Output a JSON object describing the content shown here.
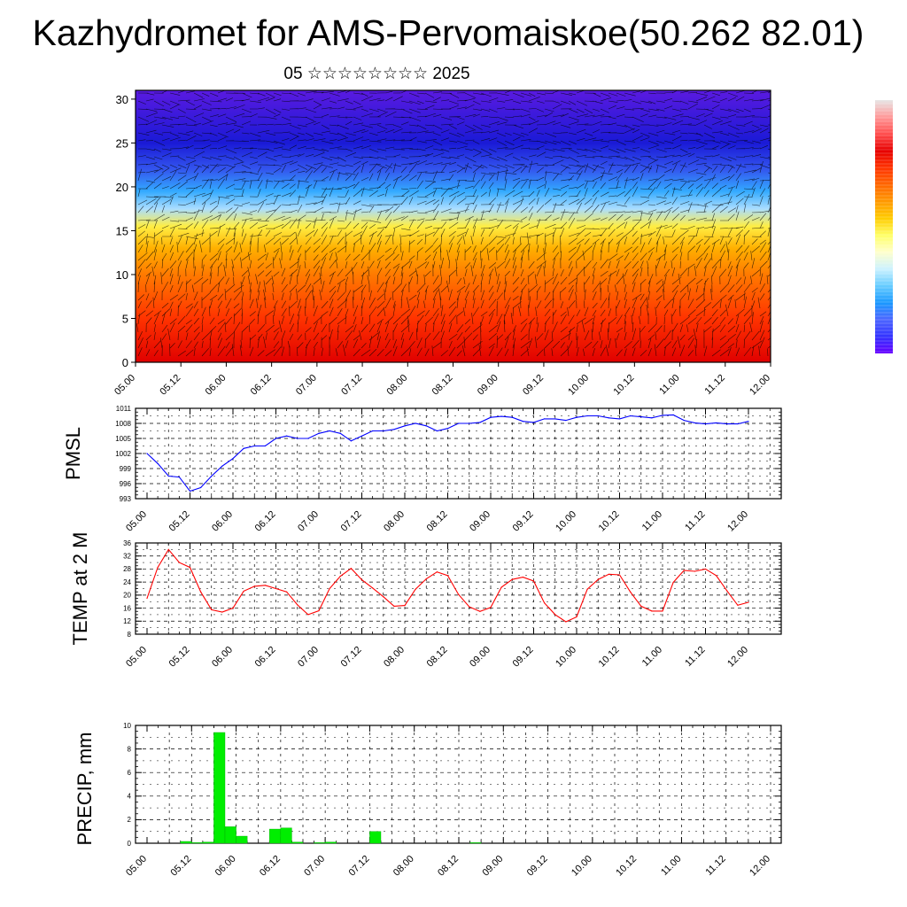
{
  "page": {
    "title": "Kazhydromet for AMS-Pervomaiskoe(50.262 82.01)",
    "subtitle": "05 ☆☆☆☆☆☆☆☆ 2025"
  },
  "time_axis": {
    "labels": [
      "05.00",
      "05.12",
      "06.00",
      "06.12",
      "07.00",
      "07.12",
      "08.00",
      "08.12",
      "09.00",
      "09.12",
      "10.00",
      "10.12",
      "11.00",
      "11.12",
      "12.00"
    ]
  },
  "colorbar": {
    "colors": [
      "#e6e6e6",
      "#ff9999",
      "#ff4d4d",
      "#e60000",
      "#ff3300",
      "#ff6600",
      "#ff9900",
      "#ffcc00",
      "#ffff66",
      "#ffffcc",
      "#ccf2ff",
      "#66ccff",
      "#1a99ff",
      "#4d66ff",
      "#3333ff",
      "#6600ff"
    ]
  },
  "chart_data": [
    {
      "type": "heatmap",
      "name": "cross-section",
      "x_range_hours": [
        0,
        168
      ],
      "y_range": [
        0,
        31
      ],
      "yticks": [
        0,
        5,
        10,
        15,
        20,
        25,
        30
      ],
      "color_levels": {
        "description_bands_by_height": [
          {
            "y": 0,
            "color": "#e00000"
          },
          {
            "y": 5,
            "color": "#ff3300"
          },
          {
            "y": 10,
            "color": "#ff7a00"
          },
          {
            "y": 13,
            "color": "#ffb000"
          },
          {
            "y": 15.5,
            "color": "#ffee44"
          },
          {
            "y": 17.5,
            "color": "#aaddff"
          },
          {
            "y": 19.5,
            "color": "#33aaff"
          },
          {
            "y": 22,
            "color": "#3355ee"
          },
          {
            "y": 25,
            "color": "#1a1ad6"
          },
          {
            "y": 31,
            "color": "#5a1ae0"
          }
        ]
      },
      "grid": false
    },
    {
      "type": "line",
      "ylabel": "PMSL",
      "ylim": [
        993,
        1011
      ],
      "yticks": [
        993,
        996,
        999,
        1002,
        1005,
        1008,
        1011
      ],
      "color": "#0000ff",
      "x_hours": [
        0,
        3,
        6,
        9,
        12,
        15,
        18,
        21,
        24,
        27,
        30,
        33,
        36,
        39,
        42,
        45,
        48,
        51,
        54,
        57,
        60,
        63,
        66,
        69,
        72,
        75,
        78,
        81,
        84,
        87,
        90,
        93,
        96,
        99,
        102,
        105,
        108,
        111,
        114,
        117,
        120,
        123,
        126,
        129,
        132,
        135,
        138,
        141,
        144,
        147,
        150,
        153,
        156,
        159,
        162,
        165,
        168
      ],
      "values": [
        1002,
        1000,
        997.5,
        997.3,
        994.5,
        995.2,
        997.5,
        999.5,
        1001,
        1003,
        1003.5,
        1003.5,
        1005,
        1005.5,
        1005,
        1005,
        1006,
        1006.5,
        1006,
        1004.5,
        1005.5,
        1006.5,
        1006.5,
        1006.8,
        1007.5,
        1008,
        1007.5,
        1006.5,
        1007,
        1008,
        1008,
        1008.2,
        1009.2,
        1009.4,
        1009.2,
        1008.4,
        1008.2,
        1008.9,
        1008.9,
        1008.6,
        1009.2,
        1009.5,
        1009.5,
        1009.1,
        1008.9,
        1009.5,
        1009.3,
        1009.1,
        1009.6,
        1009.7,
        1008.6,
        1008.1,
        1007.9,
        1008.1,
        1007.9,
        1007.9,
        1008.4
      ],
      "grid": true
    },
    {
      "type": "line",
      "ylabel": "TEMP at 2 M",
      "ylim": [
        8,
        36
      ],
      "yticks": [
        8,
        12,
        16,
        20,
        24,
        28,
        32,
        36
      ],
      "color": "#ff0000",
      "x_hours": [
        0,
        3,
        6,
        9,
        12,
        15,
        18,
        21,
        24,
        27,
        30,
        33,
        36,
        39,
        42,
        45,
        48,
        51,
        54,
        57,
        60,
        63,
        66,
        69,
        72,
        75,
        78,
        81,
        84,
        87,
        90,
        93,
        96,
        99,
        102,
        105,
        108,
        111,
        114,
        117,
        120,
        123,
        126,
        129,
        132,
        135,
        138,
        141,
        144,
        147,
        150,
        153,
        156,
        159,
        162,
        165,
        168
      ],
      "values": [
        19,
        28.5,
        34,
        30,
        28.5,
        21,
        15.5,
        14.8,
        16,
        21.2,
        22.7,
        23,
        22,
        21,
        17,
        14,
        15.2,
        22,
        25.8,
        28.2,
        24.7,
        22.2,
        19.5,
        16.6,
        16.8,
        21.8,
        25,
        27.1,
        26,
        20.2,
        16.4,
        15,
        16.2,
        22.4,
        24.8,
        25.5,
        24.3,
        17.6,
        14,
        11.8,
        13.3,
        21.8,
        24.8,
        26.4,
        26.2,
        21,
        16.6,
        15.1,
        15.1,
        23.9,
        27.6,
        27.3,
        28,
        26,
        21.3,
        16.9,
        17.8
      ],
      "grid": true
    },
    {
      "type": "bar",
      "ylabel": "PRECIP, mm",
      "ylim": [
        0,
        10
      ],
      "yticks": [
        0,
        2,
        4,
        6,
        8,
        10
      ],
      "color": "#00ee00",
      "bar_width_hours": 3,
      "x_hours": [
        0,
        3,
        6,
        9,
        12,
        15,
        18,
        21,
        24,
        27,
        30,
        33,
        36,
        39,
        42,
        45,
        48,
        51,
        54,
        57,
        60,
        63,
        66,
        69,
        72,
        75,
        78,
        81,
        84,
        87,
        90,
        93,
        96,
        99,
        102,
        105,
        108,
        111,
        114,
        117,
        120,
        123,
        126,
        129,
        132,
        135,
        138,
        141,
        144,
        147,
        150,
        153,
        156,
        159,
        162,
        165
      ],
      "values": [
        0,
        0,
        0.15,
        0.05,
        0.1,
        9.4,
        1.4,
        0.6,
        0,
        0,
        1.2,
        1.3,
        0.1,
        0,
        0.05,
        0.1,
        0,
        0,
        0,
        1.0,
        0,
        0,
        0,
        0,
        0,
        0,
        0,
        0,
        0.05,
        0,
        0,
        0,
        0,
        0,
        0,
        0,
        0,
        0,
        0,
        0,
        0,
        0,
        0,
        0,
        0,
        0,
        0,
        0,
        0,
        0,
        0,
        0,
        0,
        0,
        0,
        0
      ],
      "grid": true
    }
  ]
}
